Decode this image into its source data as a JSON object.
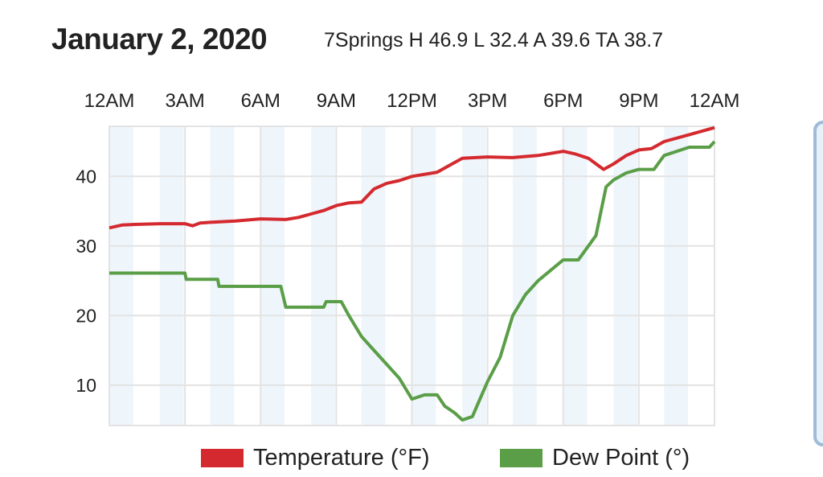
{
  "header": {
    "title": "January 2, 2020",
    "subtitle": "7Springs H 46.9 L 32.4 A 39.6 TA 38.7"
  },
  "chart_data": {
    "type": "line",
    "title": "January 2, 2020",
    "xlabel": "",
    "ylabel": "",
    "x_ticks": [
      "12AM",
      "3AM",
      "6AM",
      "9AM",
      "12PM",
      "3PM",
      "6PM",
      "9PM",
      "12AM"
    ],
    "x_tick_hours": [
      0,
      3,
      6,
      9,
      12,
      15,
      18,
      21,
      24
    ],
    "xlim": [
      0,
      24
    ],
    "y_ticks": [
      10,
      20,
      30,
      40
    ],
    "ylim": [
      4.2,
      47.2
    ],
    "grid": true,
    "legend_position": "bottom",
    "colors": {
      "temperature": "#d42a2f",
      "dew_point": "#5a9e47",
      "stripe": "#eef5fb",
      "grid": "#e3e3e3"
    },
    "series": [
      {
        "name": "Temperature (°F)",
        "color": "#d42a2f",
        "x": [
          0,
          0.5,
          1,
          2,
          3,
          3.3,
          3.6,
          4,
          5,
          6,
          7,
          7.5,
          8,
          8.5,
          9,
          9.5,
          10,
          10.5,
          11,
          11.5,
          12,
          13,
          13.5,
          14,
          15,
          16,
          17,
          18,
          18.5,
          19,
          19.6,
          20,
          20.5,
          21,
          21.5,
          22,
          23,
          24
        ],
        "y": [
          32.6,
          33,
          33.1,
          33.2,
          33.2,
          32.9,
          33.3,
          33.4,
          33.6,
          33.9,
          33.8,
          34.1,
          34.6,
          35.1,
          35.8,
          36.2,
          36.3,
          38.2,
          39,
          39.4,
          40,
          40.6,
          41.6,
          42.6,
          42.8,
          42.7,
          43,
          43.6,
          43.2,
          42.6,
          41,
          41.8,
          43,
          43.8,
          44,
          45,
          46,
          47
        ]
      },
      {
        "name": "Dew Point (°)",
        "color": "#5a9e47",
        "x": [
          0,
          3,
          3.05,
          4.3,
          4.35,
          6.8,
          7,
          8.5,
          8.6,
          9.2,
          9.5,
          10,
          10.5,
          11,
          11.5,
          12,
          12.5,
          13,
          13.3,
          13.7,
          14,
          14.4,
          14.7,
          15,
          15.5,
          16,
          16.5,
          17,
          17.5,
          18,
          18.6,
          19,
          19.3,
          19.7,
          20,
          20.5,
          21,
          21.6,
          22,
          23,
          23.8,
          24
        ],
        "y": [
          26.1,
          26.1,
          25.2,
          25.2,
          24.2,
          24.2,
          21.2,
          21.2,
          22,
          22,
          20,
          17,
          15,
          13,
          11,
          8,
          8.6,
          8.6,
          7,
          6,
          5,
          5.5,
          8,
          10.5,
          14,
          20,
          23,
          25,
          26.5,
          28,
          28,
          30,
          31.5,
          38.5,
          39.5,
          40.5,
          41,
          41,
          43,
          44.2,
          44.2,
          45
        ]
      }
    ],
    "legend": [
      "Temperature (°F)",
      "Dew Point (°)"
    ]
  }
}
